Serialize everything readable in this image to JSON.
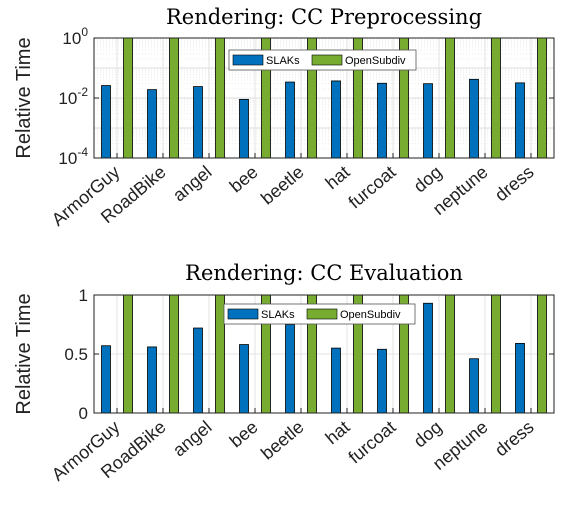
{
  "chart_data": [
    {
      "type": "bar",
      "title": "Rendering: CC Preprocessing",
      "ylabel": "Relative Time",
      "xlabel": "",
      "yscale": "log",
      "ylim": [
        0.0001,
        1
      ],
      "yticks": [
        {
          "value": 0.0001,
          "base": "10",
          "exp": "-4"
        },
        {
          "value": 0.01,
          "base": "10",
          "exp": "-2"
        },
        {
          "value": 1,
          "base": "10",
          "exp": "0"
        }
      ],
      "grid": true,
      "legend_position": "top-center",
      "categories": [
        "ArmorGuy",
        "RoadBike",
        "angel",
        "bee",
        "beetle",
        "hat",
        "furcoat",
        "dog",
        "neptune",
        "dress"
      ],
      "series": [
        {
          "name": "SLAKs",
          "color": "#0072BD",
          "values": [
            0.026,
            0.019,
            0.024,
            0.009,
            0.034,
            0.037,
            0.031,
            0.03,
            0.042,
            0.032
          ]
        },
        {
          "name": "OpenSubdiv",
          "color": "#77AC30",
          "values": [
            1,
            1,
            1,
            1,
            1,
            1,
            1,
            1,
            1,
            1
          ]
        }
      ]
    },
    {
      "type": "bar",
      "title": "Rendering: CC Evaluation",
      "ylabel": "Relative Time",
      "xlabel": "",
      "yscale": "linear",
      "ylim": [
        0,
        1
      ],
      "yticks": [
        {
          "value": 0,
          "label": "0"
        },
        {
          "value": 0.5,
          "label": "0.5"
        },
        {
          "value": 1,
          "label": "1"
        }
      ],
      "grid": true,
      "legend_position": "top-center",
      "categories": [
        "ArmorGuy",
        "RoadBike",
        "angel",
        "bee",
        "beetle",
        "hat",
        "furcoat",
        "dog",
        "neptune",
        "dress"
      ],
      "series": [
        {
          "name": "SLAKs",
          "color": "#0072BD",
          "values": [
            0.57,
            0.56,
            0.72,
            0.58,
            0.75,
            0.55,
            0.54,
            0.93,
            0.46,
            0.59
          ]
        },
        {
          "name": "OpenSubdiv",
          "color": "#77AC30",
          "values": [
            1,
            1,
            1,
            1,
            1,
            1,
            1,
            1,
            1,
            1
          ]
        }
      ]
    }
  ]
}
